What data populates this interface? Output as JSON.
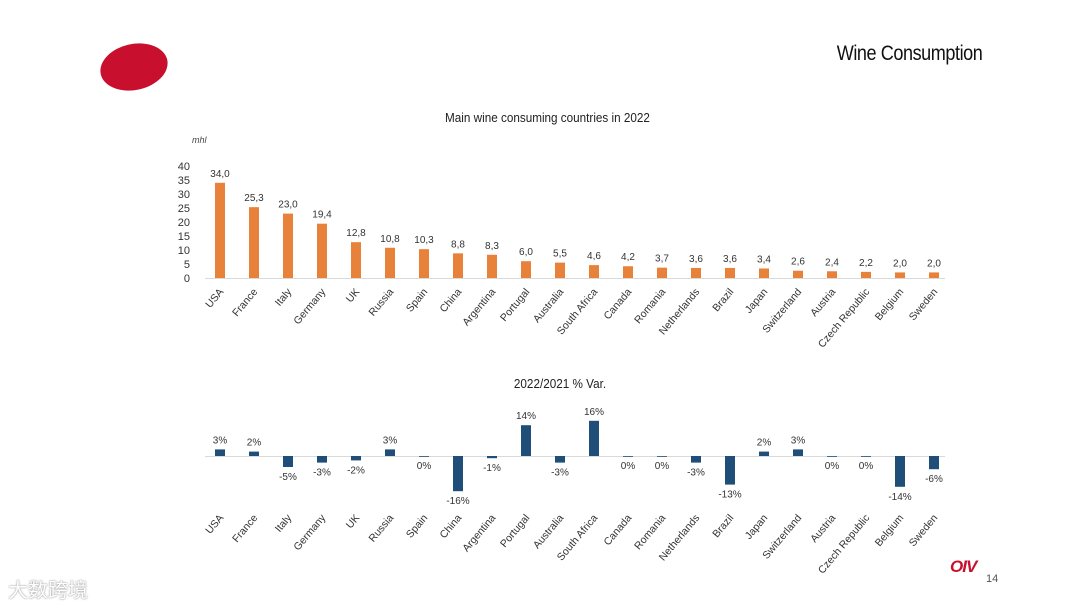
{
  "page": {
    "title": "Wine Consumption",
    "page_number": "14",
    "brand": "OIV",
    "watermark": "大数跨境"
  },
  "colors": {
    "brand_red": "#c8102e",
    "bar_orange": "#e8823a",
    "bar_blue": "#1f4e79",
    "axis": "#d9d9d9"
  },
  "chart_data": [
    {
      "type": "bar",
      "title": "Main wine consuming countries in 2022",
      "ylabel": "mhl",
      "ylim": [
        0,
        40
      ],
      "yticks": [
        "40",
        "35",
        "30",
        "25",
        "20",
        "15",
        "10",
        "5",
        "0"
      ],
      "categories": [
        "USA",
        "France",
        "Italy",
        "Germany",
        "UK",
        "Russia",
        "Spain",
        "China",
        "Argentina",
        "Portugal",
        "Australia",
        "South Africa",
        "Canada",
        "Romania",
        "Netherlands",
        "Brazil",
        "Japan",
        "Switzerland",
        "Austria",
        "Czech Republic",
        "Belgium",
        "Sweden"
      ],
      "values": [
        34.0,
        25.3,
        23.0,
        19.4,
        12.8,
        10.8,
        10.3,
        8.8,
        8.3,
        6.0,
        5.5,
        4.6,
        4.2,
        3.7,
        3.6,
        3.6,
        3.4,
        2.6,
        2.4,
        2.2,
        2.0,
        2.0
      ],
      "labels": [
        "34,0",
        "25,3",
        "23,0",
        "19,4",
        "12,8",
        "10,8",
        "10,3",
        "8,8",
        "8,3",
        "6,0",
        "5,5",
        "4,6",
        "4,2",
        "3,7",
        "3,6",
        "3,6",
        "3,4",
        "2,6",
        "2,4",
        "2,2",
        "2,0",
        "2,0"
      ]
    },
    {
      "type": "bar",
      "title": "2022/2021 % Var.",
      "categories": [
        "USA",
        "France",
        "Italy",
        "Germany",
        "UK",
        "Russia",
        "Spain",
        "China",
        "Argentina",
        "Portugal",
        "Australia",
        "South Africa",
        "Canada",
        "Romania",
        "Netherlands",
        "Brazil",
        "Japan",
        "Switzerland",
        "Austria",
        "Czech Republic",
        "Belgium",
        "Sweden"
      ],
      "values": [
        3,
        2,
        -5,
        -3,
        -2,
        3,
        0,
        -16,
        -1,
        14,
        -3,
        16,
        0,
        0,
        -3,
        -13,
        2,
        3,
        0,
        0,
        -14,
        -6
      ],
      "labels": [
        "3%",
        "2%",
        "-5%",
        "-3%",
        "-2%",
        "3%",
        "0%",
        "-16%",
        "-1%",
        "14%",
        "-3%",
        "16%",
        "0%",
        "0%",
        "-3%",
        "-13%",
        "2%",
        "3%",
        "0%",
        "0%",
        "-14%",
        "-6%"
      ]
    }
  ]
}
